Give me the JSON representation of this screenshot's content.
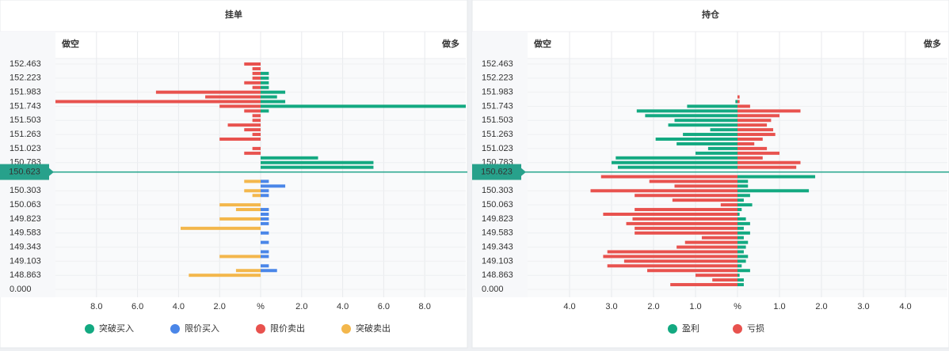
{
  "chart_data": [
    {
      "type": "butterfly-bar",
      "title": "挂单",
      "left_label": "做空",
      "right_label": "做多",
      "current_price": "150.623",
      "categories": [
        "152.463",
        null,
        null,
        "152.223",
        null,
        null,
        "151.983",
        null,
        null,
        "151.743",
        null,
        null,
        "151.503",
        null,
        null,
        "151.263",
        null,
        null,
        "151.023",
        null,
        null,
        "150.783",
        null,
        null,
        null,
        null,
        null,
        "150.303",
        null,
        null,
        "150.063",
        null,
        null,
        "149.823",
        null,
        null,
        "149.583",
        null,
        null,
        "149.343",
        null,
        null,
        "149.103",
        null,
        null,
        "148.863",
        null,
        null,
        "0.000"
      ],
      "xlim": [
        -10,
        10
      ],
      "xticks": [
        {
          "value": -8,
          "label": "8.0"
        },
        {
          "value": -6,
          "label": "6.0"
        },
        {
          "value": -4,
          "label": "4.0"
        },
        {
          "value": -2,
          "label": "2.0"
        },
        {
          "value": 0,
          "label": "%"
        },
        {
          "value": 2,
          "label": "2.0"
        },
        {
          "value": 4,
          "label": "4.0"
        },
        {
          "value": 6,
          "label": "6.0"
        },
        {
          "value": 8,
          "label": "8.0"
        }
      ],
      "grid": true,
      "series": [
        {
          "name": "突破买入",
          "color": "#13a981",
          "values": [
            null,
            null,
            0.4,
            0.4,
            0.4,
            0.4,
            1.2,
            0.8,
            1.2,
            10,
            0.4,
            null,
            null,
            null,
            null,
            null,
            null,
            null,
            null,
            null,
            2.8,
            5.5,
            5.5,
            null,
            null,
            null,
            null,
            null,
            null,
            null,
            null,
            null,
            null,
            null,
            null,
            null,
            null,
            null,
            null,
            null,
            null,
            null,
            null,
            null,
            null,
            null,
            null,
            null,
            null
          ]
        },
        {
          "name": "限价买入",
          "color": "#4a86e8",
          "values": [
            null,
            null,
            null,
            null,
            null,
            null,
            null,
            null,
            null,
            null,
            null,
            null,
            null,
            null,
            null,
            null,
            null,
            null,
            null,
            null,
            null,
            null,
            null,
            null,
            null,
            0.4,
            1.2,
            0.4,
            0.4,
            null,
            null,
            0.4,
            0.4,
            0.4,
            0.4,
            null,
            0.4,
            null,
            0.4,
            null,
            0.4,
            0.4,
            null,
            0.4,
            0.8,
            null,
            null,
            null,
            null
          ]
        },
        {
          "name": "限价卖出",
          "color": "#e8524e",
          "values": [
            -0.8,
            -0.4,
            -0.4,
            -0.4,
            -0.8,
            -0.4,
            -5.1,
            -2.7,
            -10,
            -2,
            -0.8,
            -0.4,
            -0.4,
            -1.6,
            -0.8,
            -0.4,
            -2,
            null,
            -0.4,
            -0.8,
            null,
            null,
            null,
            null,
            null,
            null,
            null,
            null,
            null,
            null,
            null,
            null,
            null,
            null,
            null,
            null,
            null,
            null,
            null,
            null,
            null,
            null,
            null,
            null,
            null,
            null,
            null,
            null,
            null
          ]
        },
        {
          "name": "突破卖出",
          "color": "#f3b74c",
          "values": [
            null,
            null,
            null,
            null,
            null,
            null,
            null,
            null,
            null,
            null,
            null,
            null,
            null,
            null,
            null,
            null,
            null,
            null,
            null,
            null,
            null,
            null,
            null,
            null,
            null,
            -0.8,
            null,
            -0.8,
            -0.4,
            null,
            -2,
            -1.2,
            null,
            -2,
            null,
            -3.9,
            null,
            null,
            null,
            null,
            null,
            -2,
            null,
            null,
            -1.2,
            -3.5,
            null,
            null,
            null
          ]
        }
      ]
    },
    {
      "type": "butterfly-bar",
      "title": "持仓",
      "left_label": "做空",
      "right_label": "做多",
      "current_price": "150.623",
      "categories": [
        "152.463",
        null,
        null,
        "152.223",
        null,
        null,
        "151.983",
        null,
        null,
        "151.743",
        null,
        null,
        "151.503",
        null,
        null,
        "151.263",
        null,
        null,
        "151.023",
        null,
        null,
        "150.783",
        null,
        null,
        null,
        null,
        null,
        "150.303",
        null,
        null,
        "150.063",
        null,
        null,
        "149.823",
        null,
        null,
        "149.583",
        null,
        null,
        "149.343",
        null,
        null,
        "149.103",
        null,
        null,
        "148.863",
        null,
        null,
        "0.000"
      ],
      "xlim": [
        -5,
        5
      ],
      "xticks": [
        {
          "value": -4,
          "label": "4.0"
        },
        {
          "value": -3,
          "label": "3.0"
        },
        {
          "value": -2,
          "label": "2.0"
        },
        {
          "value": -1,
          "label": "1.0"
        },
        {
          "value": 0,
          "label": "%"
        },
        {
          "value": 1,
          "label": "1.0"
        },
        {
          "value": 2,
          "label": "2.0"
        },
        {
          "value": 3,
          "label": "3.0"
        },
        {
          "value": 4,
          "label": "4.0"
        }
      ],
      "grid": true,
      "series": [
        {
          "name": "盈利",
          "color": "#13a981",
          "values": [
            null,
            null,
            null,
            null,
            null,
            null,
            null,
            null,
            -0.05,
            -1.2,
            -2.4,
            -2.2,
            -1.5,
            -1.65,
            -0.65,
            -1.3,
            -1.95,
            -1.45,
            -0.7,
            -1.0,
            -2.9,
            -3.0,
            -2.85,
            null,
            1.85,
            0.25,
            0.25,
            1.7,
            0.3,
            0.15,
            0.35,
            0.1,
            0.05,
            0.2,
            0.3,
            0.15,
            0.3,
            0.15,
            0.25,
            0.2,
            0.15,
            0.25,
            0.2,
            0.1,
            0.3,
            0.05,
            0.15,
            0.15,
            null
          ]
        },
        {
          "name": "亏损",
          "color": "#e8524e",
          "values": [
            null,
            null,
            null,
            null,
            null,
            null,
            null,
            0.05,
            0.05,
            0.3,
            1.5,
            1.0,
            0.8,
            0.7,
            0.85,
            0.9,
            0.6,
            0.4,
            0.7,
            1.0,
            0.6,
            1.5,
            1.4,
            null,
            -3.25,
            -2.1,
            -1.5,
            -3.5,
            -2.45,
            -1.55,
            -0.4,
            -2.45,
            -3.2,
            -2.5,
            -2.65,
            -2.45,
            -2.45,
            -0.85,
            -1.25,
            -1.45,
            -3.1,
            -3.2,
            -2.7,
            -3.1,
            -2.15,
            -1.0,
            -0.6,
            -1.6,
            null
          ]
        }
      ]
    }
  ]
}
